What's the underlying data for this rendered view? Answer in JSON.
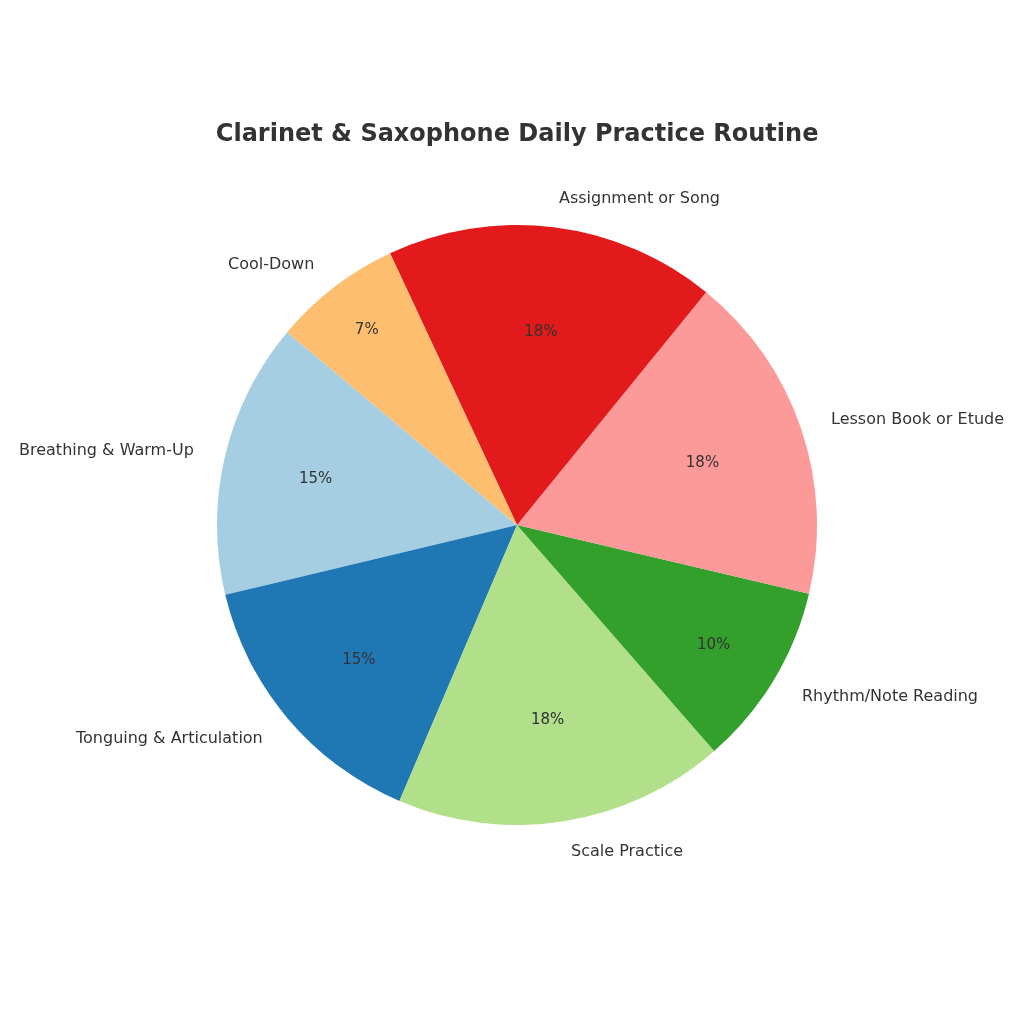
{
  "chart_data": {
    "type": "pie",
    "title": "Clarinet & Saxophone Daily Practice Routine",
    "categories": [
      "Breathing & Warm-Up",
      "Tonguing & Articulation",
      "Scale Practice",
      "Rhythm/Note Reading",
      "Lesson Book or Etude",
      "Assignment or Song",
      "Cool-Down"
    ],
    "values": [
      15,
      15,
      18,
      10,
      18,
      18,
      7
    ],
    "colors": [
      "#a6cee3",
      "#1f78b4",
      "#b2df8a",
      "#33a02c",
      "#fb9a99",
      "#e31a1c",
      "#fdbf6f"
    ],
    "value_labels": [
      "15%",
      "15%",
      "18%",
      "10%",
      "18%",
      "18%",
      "7%"
    ]
  }
}
